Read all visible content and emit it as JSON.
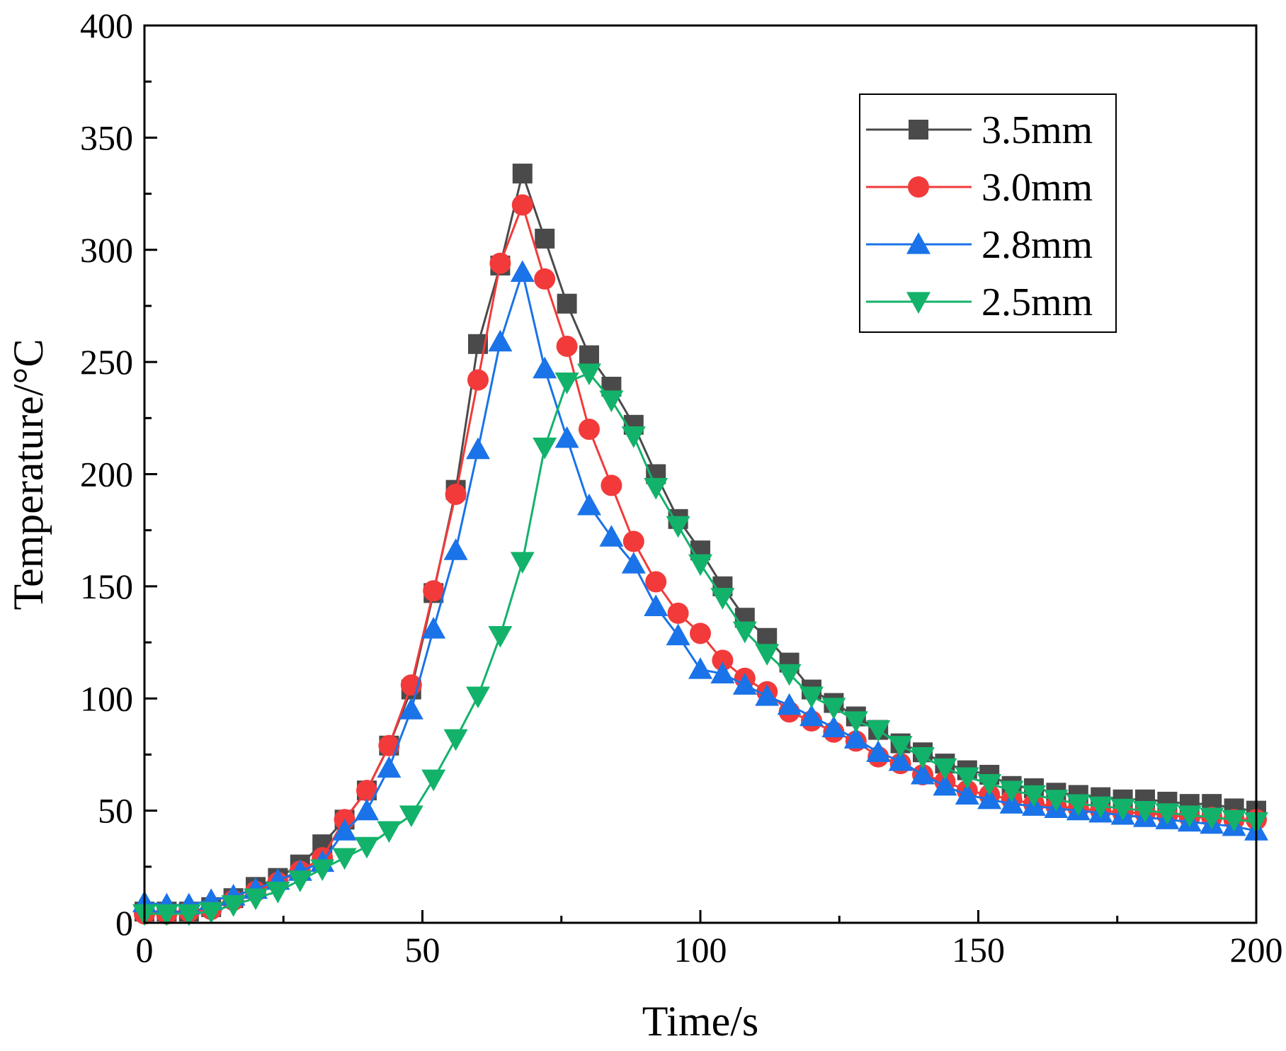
{
  "chart_data": {
    "type": "line",
    "title": "",
    "xlabel": "Time/s",
    "ylabel": "Temperature/°C",
    "xlim": [
      0,
      200
    ],
    "ylim": [
      0,
      400
    ],
    "xticks": [
      0,
      50,
      100,
      150,
      200
    ],
    "yticks": [
      0,
      50,
      100,
      150,
      200,
      250,
      300,
      350,
      400
    ],
    "x_minor_step": 25,
    "y_minor_step": 25,
    "grid": false,
    "legend_position": "top-right",
    "x": [
      0,
      4,
      8,
      12,
      16,
      20,
      24,
      28,
      32,
      36,
      40,
      44,
      48,
      52,
      56,
      60,
      64,
      68,
      72,
      76,
      80,
      84,
      88,
      92,
      96,
      100,
      104,
      108,
      112,
      116,
      120,
      124,
      128,
      132,
      136,
      140,
      144,
      148,
      152,
      156,
      160,
      164,
      168,
      172,
      176,
      180,
      184,
      188,
      192,
      196,
      200
    ],
    "series": [
      {
        "name": "3.5mm",
        "color": "#4a4a4a",
        "marker": "square",
        "values": [
          5,
          5,
          5,
          7,
          11,
          16,
          20,
          26,
          35,
          46,
          59,
          79,
          104,
          147,
          193,
          258,
          293,
          334,
          305,
          276,
          253,
          239,
          222,
          200,
          180,
          166,
          150,
          136,
          127,
          116,
          104,
          98,
          92,
          86,
          80,
          76,
          71,
          68,
          66,
          61,
          60,
          58,
          57,
          56,
          55,
          55,
          54,
          53,
          53,
          51,
          50
        ]
      },
      {
        "name": "3.0mm",
        "color": "#f23a3a",
        "marker": "circle",
        "values": [
          4,
          4,
          5,
          6,
          10,
          14,
          18,
          23,
          29,
          46,
          59,
          79,
          106,
          148,
          191,
          242,
          294,
          320,
          287,
          257,
          220,
          195,
          170,
          152,
          138,
          129,
          117,
          109,
          103,
          94,
          90,
          85,
          81,
          74,
          71,
          66,
          63,
          59,
          57,
          55,
          53,
          52,
          51,
          50,
          49,
          49,
          48,
          47,
          47,
          46,
          46
        ]
      },
      {
        "name": "2.8mm",
        "color": "#1a73e8",
        "marker": "triangle-up",
        "values": [
          9,
          8,
          8,
          10,
          12,
          15,
          19,
          23,
          27,
          41,
          50,
          69,
          95,
          131,
          166,
          211,
          259,
          290,
          247,
          216,
          186,
          172,
          160,
          141,
          128,
          113,
          111,
          106,
          101,
          97,
          92,
          87,
          82,
          76,
          72,
          66,
          61,
          57,
          55,
          53,
          52,
          51,
          50,
          49,
          48,
          47,
          46,
          45,
          44,
          43,
          41
        ]
      },
      {
        "name": "2.5mm",
        "color": "#13b26a",
        "marker": "triangle-down",
        "values": [
          4,
          4,
          4,
          5,
          8,
          11,
          14,
          19,
          24,
          29,
          34,
          41,
          48,
          64,
          82,
          101,
          128,
          161,
          212,
          241,
          245,
          233,
          217,
          194,
          177,
          160,
          145,
          130,
          120,
          111,
          101,
          96,
          90,
          86,
          79,
          74,
          69,
          65,
          62,
          59,
          57,
          55,
          53,
          52,
          51,
          50,
          49,
          48,
          47,
          46,
          45
        ]
      }
    ]
  }
}
